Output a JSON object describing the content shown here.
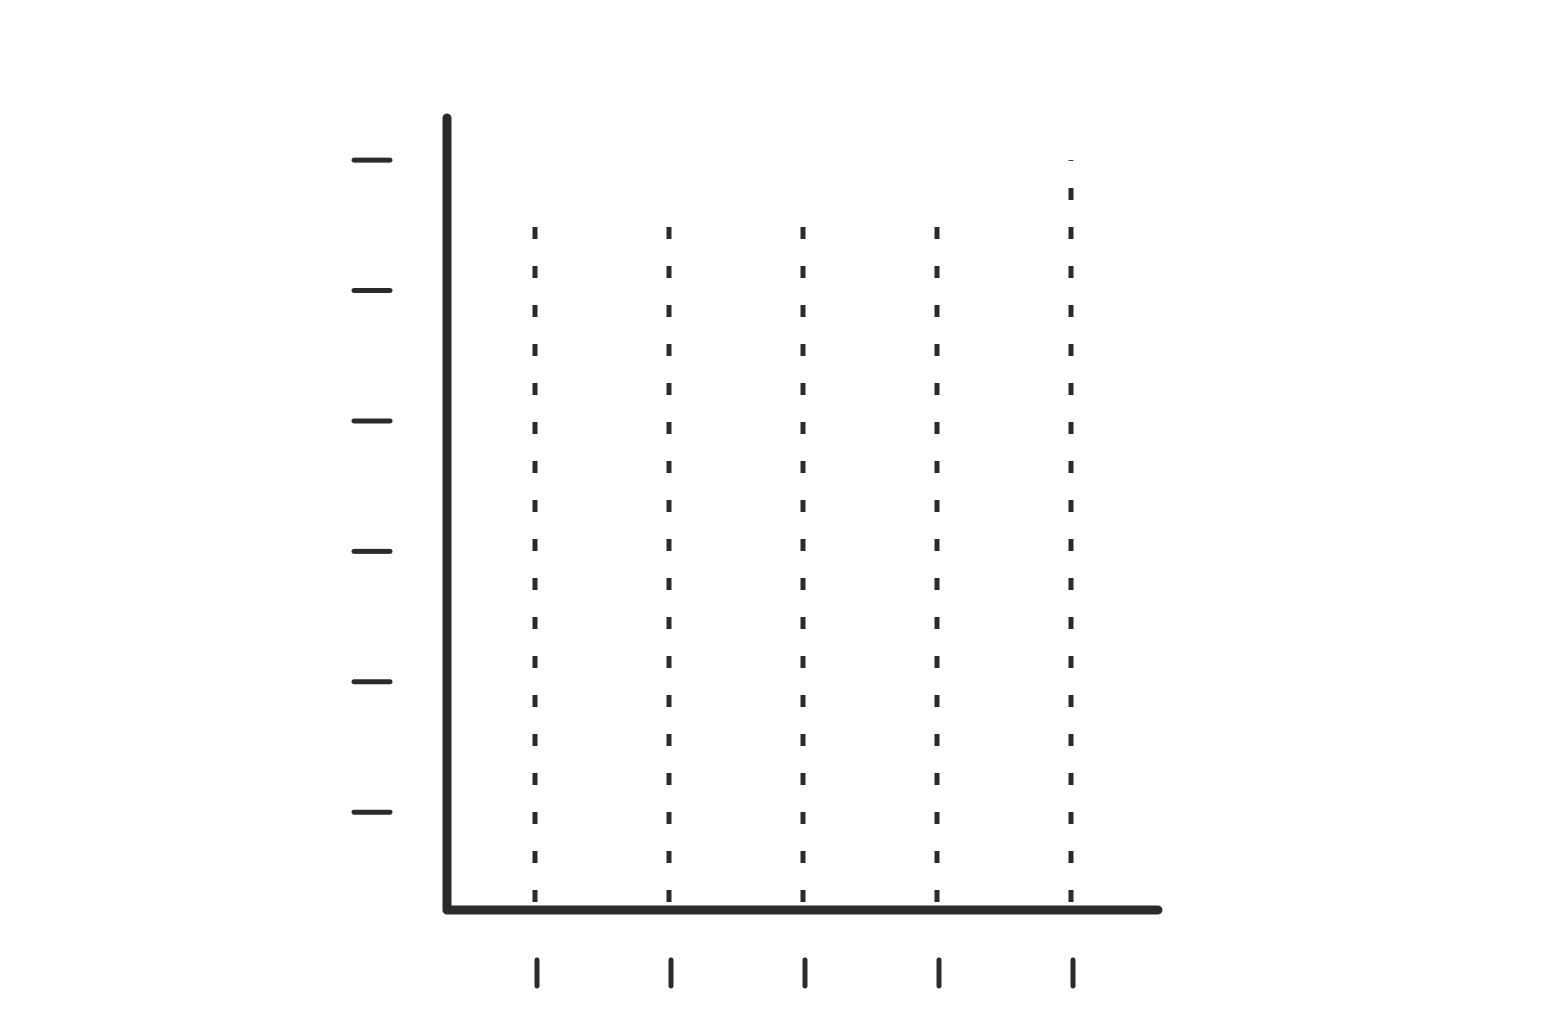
{
  "chart_data": {
    "type": "stem",
    "categories": [
      null,
      null,
      null,
      null,
      null
    ],
    "values": [
      5.6,
      5.6,
      5.6,
      5.6,
      6.0
    ],
    "color": "#2b2b2b",
    "ylim": [
      0.25,
      6.3
    ],
    "yticks": [
      1,
      2,
      3,
      4,
      5,
      6
    ],
    "line_style": "dashed"
  }
}
